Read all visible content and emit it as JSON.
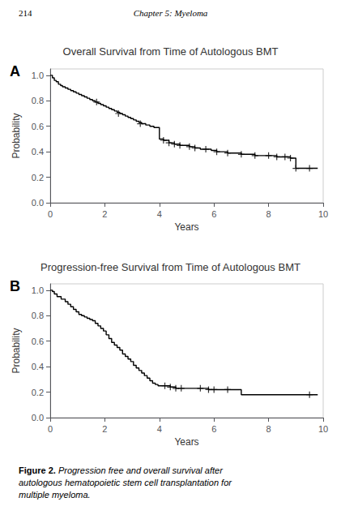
{
  "chart_data": [
    {
      "type": "step",
      "title": "Overall Survival from Time of Autologous BMT",
      "annotations": [
        "214",
        "Chapter 5: Myeloma",
        "A"
      ],
      "xlabel": "Years",
      "ylabel": "Probability",
      "xlim": [
        0,
        10
      ],
      "ylim": [
        0.0,
        1.05
      ],
      "xticks": [
        0,
        2,
        4,
        6,
        8,
        10
      ],
      "yticks": [
        {
          "value": 0.0,
          "label": "0.0"
        },
        0.2,
        0.4,
        0.6,
        0.8,
        {
          "value": 1.0,
          "label": "1.0"
        }
      ],
      "grid": false,
      "series": [
        {
          "type": "step",
          "color": "#000000",
          "x": [
            0,
            0.08,
            0.15,
            0.22,
            0.3,
            0.38,
            0.45,
            0.55,
            0.65,
            0.75,
            0.85,
            0.95,
            1.05,
            1.15,
            1.25,
            1.35,
            1.45,
            1.55,
            1.65,
            1.75,
            1.85,
            1.95,
            2.05,
            2.15,
            2.25,
            2.35,
            2.45,
            2.55,
            2.65,
            2.75,
            2.85,
            2.95,
            3.05,
            3.15,
            3.25,
            3.35,
            3.5,
            3.65,
            3.8,
            4.0,
            4.15,
            4.35,
            4.55,
            4.75,
            5.1,
            5.3,
            5.5,
            5.7,
            5.9,
            6.1,
            6.3,
            6.5,
            6.6,
            7.0,
            7.5,
            8.0,
            8.3,
            8.6,
            8.8,
            9.0,
            9.5,
            9.8
          ],
          "values": [
            1.0,
            0.98,
            0.96,
            0.95,
            0.93,
            0.92,
            0.91,
            0.9,
            0.89,
            0.88,
            0.87,
            0.86,
            0.85,
            0.84,
            0.83,
            0.82,
            0.81,
            0.8,
            0.79,
            0.78,
            0.77,
            0.76,
            0.75,
            0.74,
            0.73,
            0.72,
            0.71,
            0.7,
            0.69,
            0.68,
            0.67,
            0.66,
            0.65,
            0.64,
            0.63,
            0.62,
            0.61,
            0.6,
            0.59,
            0.5,
            0.49,
            0.47,
            0.46,
            0.45,
            0.44,
            0.43,
            0.42,
            0.42,
            0.41,
            0.4,
            0.4,
            0.39,
            0.39,
            0.38,
            0.37,
            0.37,
            0.36,
            0.36,
            0.35,
            0.27,
            0.27,
            0.27
          ]
        },
        {
          "type": "scatter",
          "marker": "+",
          "color": "#000000",
          "x": [
            1.7,
            2.5,
            3.3,
            4.15,
            4.35,
            4.55,
            4.75,
            5.1,
            5.3,
            5.7,
            6.1,
            6.5,
            7.0,
            7.5,
            8.0,
            8.3,
            8.6,
            8.8,
            9.0,
            9.5
          ],
          "values": [
            0.79,
            0.7,
            0.62,
            0.49,
            0.47,
            0.46,
            0.45,
            0.44,
            0.43,
            0.42,
            0.4,
            0.39,
            0.38,
            0.37,
            0.37,
            0.36,
            0.36,
            0.35,
            0.27,
            0.27
          ]
        }
      ]
    },
    {
      "type": "step",
      "title": "Progression-free Survival from Time of Autologous BMT",
      "annotations": [
        "B",
        "Figure 2.",
        " Progression free and overall survival after autologous hematopoietic stem cell transplantation for multiple myeloma."
      ],
      "xlabel": "Years",
      "ylabel": "Probability",
      "xlim": [
        0,
        10
      ],
      "ylim": [
        0.0,
        1.05
      ],
      "xticks": [
        0,
        2,
        4,
        6,
        8,
        10
      ],
      "yticks": [
        {
          "value": 0.0,
          "label": "0.0"
        },
        0.2,
        0.4,
        0.6,
        0.8,
        {
          "value": 1.0,
          "label": "1.0"
        }
      ],
      "grid": false,
      "series": [
        {
          "type": "step",
          "color": "#000000",
          "x": [
            0,
            0.08,
            0.15,
            0.25,
            0.4,
            0.55,
            0.65,
            0.75,
            0.85,
            0.95,
            1.05,
            1.15,
            1.25,
            1.35,
            1.45,
            1.55,
            1.65,
            1.75,
            1.85,
            1.95,
            2.05,
            2.15,
            2.25,
            2.35,
            2.45,
            2.55,
            2.65,
            2.75,
            2.85,
            2.95,
            3.05,
            3.15,
            3.25,
            3.35,
            3.45,
            3.55,
            3.65,
            3.75,
            3.85,
            3.95,
            4.05,
            4.2,
            4.4,
            4.6,
            4.8,
            5.0,
            5.5,
            5.8,
            6.0,
            6.5,
            7.0,
            7.5,
            8.0,
            8.5,
            9.0,
            9.5,
            9.8
          ],
          "values": [
            1.0,
            0.99,
            0.97,
            0.95,
            0.93,
            0.91,
            0.89,
            0.87,
            0.85,
            0.83,
            0.81,
            0.8,
            0.79,
            0.78,
            0.77,
            0.76,
            0.74,
            0.72,
            0.7,
            0.68,
            0.65,
            0.62,
            0.59,
            0.57,
            0.55,
            0.53,
            0.5,
            0.48,
            0.46,
            0.44,
            0.41,
            0.39,
            0.37,
            0.35,
            0.33,
            0.31,
            0.29,
            0.27,
            0.26,
            0.25,
            0.25,
            0.25,
            0.24,
            0.23,
            0.23,
            0.23,
            0.23,
            0.22,
            0.22,
            0.22,
            0.18,
            0.18,
            0.18,
            0.18,
            0.18,
            0.18,
            0.18
          ]
        },
        {
          "type": "scatter",
          "marker": "+",
          "color": "#000000",
          "x": [
            4.2,
            4.4,
            4.6,
            4.8,
            5.5,
            5.8,
            6.0,
            6.5,
            9.5
          ],
          "values": [
            0.25,
            0.24,
            0.23,
            0.23,
            0.23,
            0.22,
            0.22,
            0.22,
            0.18
          ]
        }
      ]
    }
  ]
}
